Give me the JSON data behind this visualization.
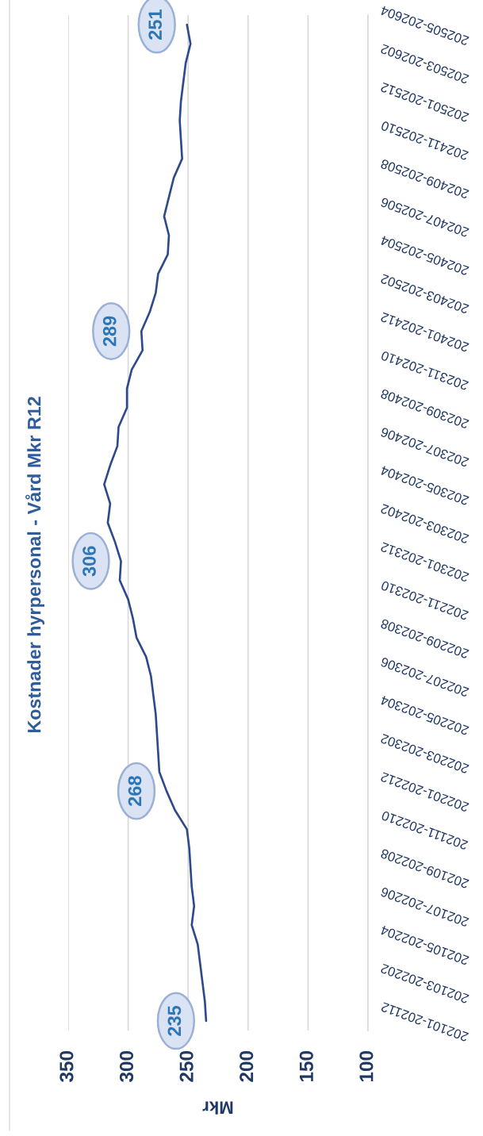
{
  "chart_data": {
    "type": "line",
    "orientation": "horizontal",
    "title": "Kostnader hyrpersonal - Vård Mkr R12",
    "xlabel": "Mkr",
    "categories": [
      "202505-202604",
      null,
      "202503-202602",
      null,
      "202501-202512",
      null,
      "202411-202510",
      null,
      "202409-202508",
      null,
      "202407-202506",
      null,
      "202405-202504",
      null,
      "202403-202502",
      null,
      "202401-202412",
      null,
      "202311-202410",
      null,
      "202309-202408",
      null,
      "202307-202406",
      null,
      "202305-202404",
      null,
      "202303-202402",
      null,
      "202301-202312",
      null,
      "202211-202310",
      null,
      "202209-202308",
      null,
      "202207-202306",
      null,
      "202205-202304",
      null,
      "202203-202302",
      null,
      "202201-202212",
      null,
      "202111-202210",
      null,
      "202109-202208",
      null,
      "202107-202206",
      null,
      "202105-202204",
      null,
      "202103-202202",
      null,
      "202101-202112"
    ],
    "values": [
      251,
      248,
      252,
      254,
      256,
      257,
      256,
      255,
      262,
      266,
      270,
      266,
      267,
      275,
      277,
      282,
      289,
      288,
      297,
      301,
      301,
      308,
      309,
      315,
      320,
      315,
      317,
      311,
      306,
      307,
      300,
      296,
      293,
      285,
      281,
      279,
      277,
      276,
      275,
      274,
      268,
      261,
      251,
      249,
      248,
      247,
      245,
      247,
      242,
      240,
      238,
      236,
      235
    ],
    "value_labels": [
      "251",
      null,
      null,
      null,
      null,
      null,
      null,
      null,
      null,
      null,
      null,
      null,
      null,
      null,
      null,
      null,
      "289",
      null,
      null,
      null,
      null,
      null,
      null,
      null,
      null,
      null,
      null,
      null,
      "306",
      null,
      null,
      null,
      null,
      null,
      null,
      null,
      null,
      null,
      null,
      null,
      "268",
      null,
      null,
      null,
      null,
      null,
      null,
      null,
      null,
      null,
      null,
      null,
      "235"
    ],
    "color": "#2f4a8a",
    "xlim": [
      350,
      100
    ],
    "xticks": [
      350,
      300,
      250,
      200,
      150,
      100
    ],
    "grid": "x"
  }
}
